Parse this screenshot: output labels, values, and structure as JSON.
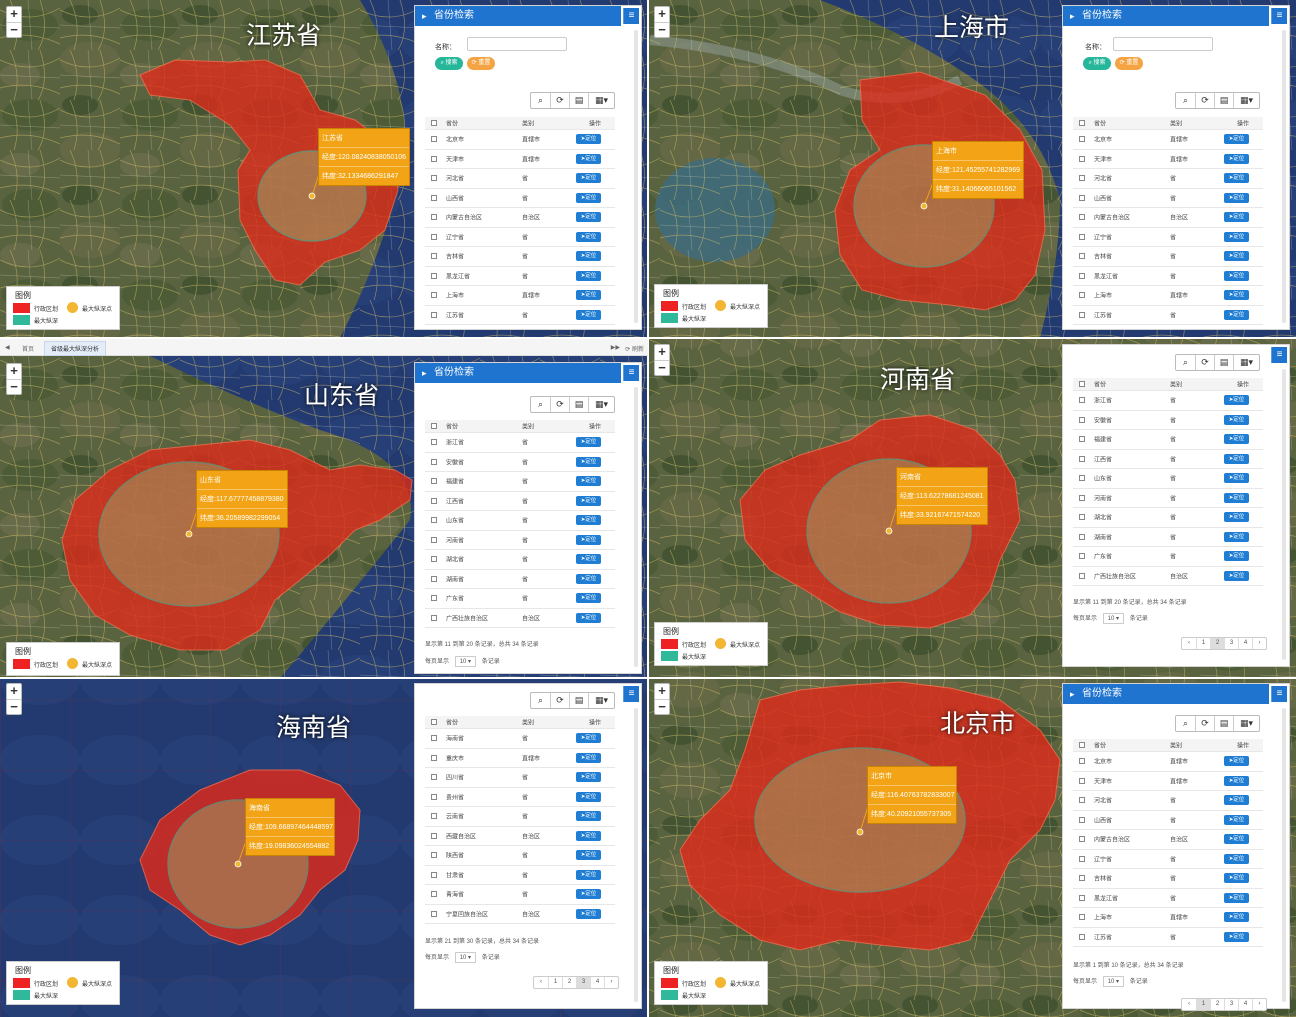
{
  "ui": {
    "panel_title": "省份检索",
    "name_label": "名称：",
    "search_btn": "搜索",
    "reset_btn": "重置",
    "col_province": "省份",
    "col_category": "类别",
    "col_action": "操作",
    "locate_btn": "定位",
    "page_size": "10",
    "per_page_prefix": "每页显示",
    "per_page_suffix": "条记录",
    "legend_title": "图例",
    "legend_admin": "行政区划",
    "legend_point": "最大纵深点",
    "legend_range": "最大纵深",
    "menu_icon": "≡"
  },
  "tabbar": {
    "home": "首页",
    "active_tab": "省级最大纵深分析",
    "refresh": "刷新"
  },
  "views": {
    "jiangsu": {
      "title": "江苏省",
      "popup": [
        "江苏省",
        "经度:120.08240838050106",
        "纬度:32.1334686291847"
      ],
      "rows": [
        [
          "北京市",
          "直辖市"
        ],
        [
          "天津市",
          "直辖市"
        ],
        [
          "河北省",
          "省"
        ],
        [
          "山西省",
          "省"
        ],
        [
          "内蒙古自治区",
          "自治区"
        ],
        [
          "辽宁省",
          "省"
        ],
        [
          "吉林省",
          "省"
        ],
        [
          "黑龙江省",
          "省"
        ],
        [
          "上海市",
          "直辖市"
        ],
        [
          "江苏省",
          "省"
        ]
      ]
    },
    "shanghai": {
      "title": "上海市",
      "popup": [
        "上海市",
        "经度:121.45255741282969",
        "纬度:31.14066065101562"
      ],
      "rows": [
        [
          "北京市",
          "直辖市"
        ],
        [
          "天津市",
          "直辖市"
        ],
        [
          "河北省",
          "省"
        ],
        [
          "山西省",
          "省"
        ],
        [
          "内蒙古自治区",
          "自治区"
        ],
        [
          "辽宁省",
          "省"
        ],
        [
          "吉林省",
          "省"
        ],
        [
          "黑龙江省",
          "省"
        ],
        [
          "上海市",
          "直辖市"
        ],
        [
          "江苏省",
          "省"
        ]
      ]
    },
    "shandong": {
      "title": "山东省",
      "popup": [
        "山东省",
        "经度:117.67777458879380",
        "纬度:36.20589982299054"
      ],
      "rows": [
        [
          "浙江省",
          "省"
        ],
        [
          "安徽省",
          "省"
        ],
        [
          "福建省",
          "省"
        ],
        [
          "江西省",
          "省"
        ],
        [
          "山东省",
          "省"
        ],
        [
          "河南省",
          "省"
        ],
        [
          "湖北省",
          "省"
        ],
        [
          "湖南省",
          "省"
        ],
        [
          "广东省",
          "省"
        ],
        [
          "广西壮族自治区",
          "自治区"
        ]
      ],
      "footer": "显示第 11 到第 20 条记录，总共 34 条记录"
    },
    "henan": {
      "title": "河南省",
      "popup": [
        "河南省",
        "经度:113.62278681245081",
        "纬度:33.92167471574220"
      ],
      "rows": [
        [
          "浙江省",
          "省"
        ],
        [
          "安徽省",
          "省"
        ],
        [
          "福建省",
          "省"
        ],
        [
          "江西省",
          "省"
        ],
        [
          "山东省",
          "省"
        ],
        [
          "河南省",
          "省"
        ],
        [
          "湖北省",
          "省"
        ],
        [
          "湖南省",
          "省"
        ],
        [
          "广东省",
          "省"
        ],
        [
          "广西壮族自治区",
          "自治区"
        ]
      ],
      "footer": "显示第 11 到第 20 条记录，总共 34 条记录",
      "pages": [
        "‹",
        "1",
        "2",
        "3",
        "4",
        "›"
      ]
    },
    "hainan": {
      "title": "海南省",
      "popup": [
        "海南省",
        "经度:109.66897464448597",
        "纬度:19.09836024554882"
      ],
      "rows": [
        [
          "海南省",
          "省"
        ],
        [
          "重庆市",
          "直辖市"
        ],
        [
          "四川省",
          "省"
        ],
        [
          "贵州省",
          "省"
        ],
        [
          "云南省",
          "省"
        ],
        [
          "西藏自治区",
          "自治区"
        ],
        [
          "陕西省",
          "省"
        ],
        [
          "甘肃省",
          "省"
        ],
        [
          "青海省",
          "省"
        ],
        [
          "宁夏回族自治区",
          "自治区"
        ]
      ],
      "footer": "显示第 21 到第 30 条记录，总共 34 条记录",
      "pages": [
        "‹",
        "1",
        "2",
        "3",
        "4",
        "›"
      ]
    },
    "beijing": {
      "title": "北京市",
      "popup": [
        "北京市",
        "经度:116.40763782833007",
        "纬度:40.20921055737305"
      ],
      "rows": [
        [
          "北京市",
          "直辖市"
        ],
        [
          "天津市",
          "直辖市"
        ],
        [
          "河北省",
          "省"
        ],
        [
          "山西省",
          "省"
        ],
        [
          "内蒙古自治区",
          "自治区"
        ],
        [
          "辽宁省",
          "省"
        ],
        [
          "吉林省",
          "省"
        ],
        [
          "黑龙江省",
          "省"
        ],
        [
          "上海市",
          "直辖市"
        ],
        [
          "江苏省",
          "省"
        ]
      ],
      "footer": "显示第 1 到第 10 条记录，总共 34 条记录",
      "pages": [
        "‹",
        "1",
        "2",
        "3",
        "4",
        "›"
      ]
    }
  },
  "colors": {
    "map_base": "#4f5a3a",
    "region_fill": "#e02a1a",
    "depth_circle": "#2fb89a",
    "popup": "#f2a416",
    "panel_header": "#1f74cf",
    "locate_button": "#1f7ed3"
  }
}
